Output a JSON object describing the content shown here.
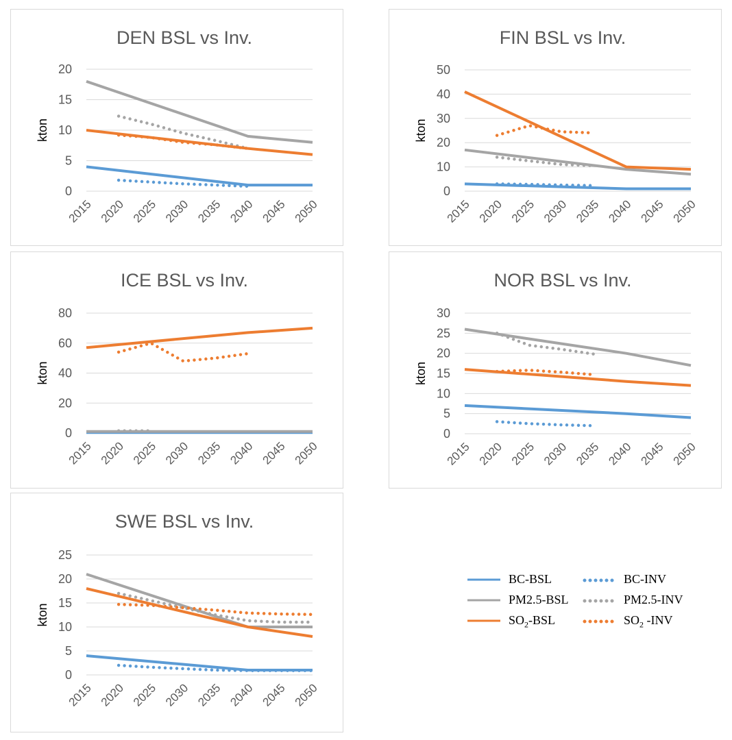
{
  "colors": {
    "BC": "#5b9bd5",
    "PM": "#a5a5a5",
    "SO2": "#ed7d31",
    "axis_text": "#595959",
    "title": "#595959",
    "grid": "#d9d9d9"
  },
  "legend": {
    "bc_bsl": "BC-BSL",
    "bc_inv": "BC-INV",
    "pm_bsl": "PM2.5-BSL",
    "pm_inv": "PM2.5-INV",
    "so2_bsl_pre": "SO",
    "so2_bsl_sub": "2",
    "so2_bsl_post": "-BSL",
    "so2_inv_pre": "SO",
    "so2_inv_sub": "2",
    "so2_inv_post": " -INV"
  },
  "chart_data": [
    {
      "type": "line",
      "title": "DEN BSL vs Inv.",
      "ylabel": "kton",
      "ylim": [
        0,
        20
      ],
      "yticks": [
        0,
        5,
        10,
        15,
        20
      ],
      "xticks": [
        "2015",
        "2020",
        "2025",
        "2030",
        "2035",
        "2040",
        "2045",
        "2050"
      ],
      "grid": true,
      "series": [
        {
          "name": "BC-BSL",
          "style": "solid",
          "color": "#5b9bd5",
          "x": [
            2015,
            2040,
            2050
          ],
          "y": [
            4,
            1,
            1
          ]
        },
        {
          "name": "BC-INV",
          "style": "dotted",
          "color": "#5b9bd5",
          "x": [
            2020,
            2025,
            2030,
            2035,
            2040
          ],
          "y": [
            1.8,
            1.5,
            1.2,
            1,
            0.8
          ]
        },
        {
          "name": "PM2.5-BSL",
          "style": "solid",
          "color": "#a5a5a5",
          "x": [
            2015,
            2040,
            2050
          ],
          "y": [
            18,
            9,
            8
          ]
        },
        {
          "name": "PM2.5-INV",
          "style": "dotted",
          "color": "#a5a5a5",
          "x": [
            2020,
            2025,
            2030,
            2035,
            2040
          ],
          "y": [
            12.3,
            11,
            9.5,
            8.3,
            7
          ]
        },
        {
          "name": "SO2-BSL",
          "style": "solid",
          "color": "#ed7d31",
          "x": [
            2015,
            2040,
            2050
          ],
          "y": [
            10,
            7,
            6
          ]
        },
        {
          "name": "SO2 -INV",
          "style": "dotted",
          "color": "#ed7d31",
          "x": [
            2020,
            2025,
            2030,
            2035,
            2040
          ],
          "y": [
            9.2,
            8.8,
            8,
            7.6,
            7
          ]
        }
      ]
    },
    {
      "type": "line",
      "title": "FIN BSL vs Inv.",
      "ylabel": "kton",
      "ylim": [
        0,
        50
      ],
      "yticks": [
        0,
        10,
        20,
        30,
        40,
        50
      ],
      "xticks": [
        "2015",
        "2020",
        "2025",
        "2030",
        "2035",
        "2040",
        "2045",
        "2050"
      ],
      "grid": true,
      "series": [
        {
          "name": "BC-BSL",
          "style": "solid",
          "color": "#5b9bd5",
          "x": [
            2015,
            2040,
            2050
          ],
          "y": [
            3,
            1,
            1
          ]
        },
        {
          "name": "BC-INV",
          "style": "dotted",
          "color": "#5b9bd5",
          "x": [
            2020,
            2025,
            2030,
            2035
          ],
          "y": [
            3,
            2.8,
            2.5,
            2.3
          ]
        },
        {
          "name": "PM2.5-BSL",
          "style": "solid",
          "color": "#a5a5a5",
          "x": [
            2015,
            2040,
            2050
          ],
          "y": [
            17,
            9,
            7
          ]
        },
        {
          "name": "PM2.5-INV",
          "style": "dotted",
          "color": "#a5a5a5",
          "x": [
            2020,
            2025,
            2030,
            2035
          ],
          "y": [
            14,
            12.5,
            11,
            10.5
          ]
        },
        {
          "name": "SO2-BSL",
          "style": "solid",
          "color": "#ed7d31",
          "x": [
            2015,
            2040,
            2050
          ],
          "y": [
            41,
            10,
            9
          ]
        },
        {
          "name": "SO2 -INV",
          "style": "dotted",
          "color": "#ed7d31",
          "x": [
            2020,
            2025,
            2030,
            2035
          ],
          "y": [
            23,
            27,
            24.5,
            24
          ]
        }
      ]
    },
    {
      "type": "line",
      "title": "ICE BSL vs Inv.",
      "ylabel": "kton",
      "ylim": [
        0,
        80
      ],
      "yticks": [
        0,
        20,
        40,
        60,
        80
      ],
      "xticks": [
        "2015",
        "2020",
        "2025",
        "2030",
        "2035",
        "2040",
        "2045",
        "2050"
      ],
      "grid": true,
      "series": [
        {
          "name": "BC-BSL",
          "style": "solid",
          "color": "#5b9bd5",
          "x": [
            2015,
            2050
          ],
          "y": [
            0.3,
            0.3
          ]
        },
        {
          "name": "PM2.5-BSL",
          "style": "solid",
          "color": "#a5a5a5",
          "x": [
            2015,
            2050
          ],
          "y": [
            1,
            1
          ]
        },
        {
          "name": "PM2.5-INV",
          "style": "dotted",
          "color": "#a5a5a5",
          "x": [
            2020,
            2025
          ],
          "y": [
            1.5,
            1.5
          ]
        },
        {
          "name": "SO2-BSL",
          "style": "solid",
          "color": "#ed7d31",
          "x": [
            2015,
            2040,
            2050
          ],
          "y": [
            57,
            67,
            70
          ]
        },
        {
          "name": "SO2 -INV",
          "style": "dotted",
          "color": "#ed7d31",
          "x": [
            2020,
            2025,
            2030,
            2035,
            2040
          ],
          "y": [
            54,
            60,
            48,
            50,
            53
          ]
        }
      ]
    },
    {
      "type": "line",
      "title": "NOR BSL vs Inv.",
      "ylabel": "kton",
      "ylim": [
        0,
        30
      ],
      "yticks": [
        0,
        5,
        10,
        15,
        20,
        25,
        30
      ],
      "xticks": [
        "2015",
        "2020",
        "2025",
        "2030",
        "2035",
        "2040",
        "2045",
        "2050"
      ],
      "grid": true,
      "series": [
        {
          "name": "BC-BSL",
          "style": "solid",
          "color": "#5b9bd5",
          "x": [
            2015,
            2040,
            2050
          ],
          "y": [
            7,
            5,
            4
          ]
        },
        {
          "name": "BC-INV",
          "style": "dotted",
          "color": "#5b9bd5",
          "x": [
            2020,
            2025,
            2030,
            2035
          ],
          "y": [
            3,
            2.5,
            2.2,
            2
          ]
        },
        {
          "name": "PM2.5-BSL",
          "style": "solid",
          "color": "#a5a5a5",
          "x": [
            2015,
            2040,
            2050
          ],
          "y": [
            26,
            20,
            17
          ]
        },
        {
          "name": "PM2.5-INV",
          "style": "dotted",
          "color": "#a5a5a5",
          "x": [
            2020,
            2025,
            2030,
            2035
          ],
          "y": [
            25,
            22,
            21,
            19.8
          ]
        },
        {
          "name": "SO2-BSL",
          "style": "solid",
          "color": "#ed7d31",
          "x": [
            2015,
            2040,
            2050
          ],
          "y": [
            16,
            13,
            12
          ]
        },
        {
          "name": "SO2 -INV",
          "style": "dotted",
          "color": "#ed7d31",
          "x": [
            2020,
            2025,
            2030,
            2035
          ],
          "y": [
            15.5,
            15.8,
            15.3,
            14.7
          ]
        }
      ]
    },
    {
      "type": "line",
      "title": "SWE BSL vs Inv.",
      "ylabel": "kton",
      "ylim": [
        0,
        25
      ],
      "yticks": [
        0,
        5,
        10,
        15,
        20,
        25
      ],
      "xticks": [
        "2015",
        "2020",
        "2025",
        "2030",
        "2035",
        "2040",
        "2045",
        "2050"
      ],
      "grid": true,
      "series": [
        {
          "name": "BC-BSL",
          "style": "solid",
          "color": "#5b9bd5",
          "x": [
            2015,
            2040,
            2050
          ],
          "y": [
            4,
            1,
            1
          ]
        },
        {
          "name": "BC-INV",
          "style": "dotted",
          "color": "#5b9bd5",
          "x": [
            2020,
            2025,
            2030,
            2035,
            2040,
            2045,
            2050
          ],
          "y": [
            2,
            1.6,
            1.3,
            1,
            0.9,
            0.9,
            0.9
          ]
        },
        {
          "name": "PM2.5-BSL",
          "style": "solid",
          "color": "#a5a5a5",
          "x": [
            2015,
            2040,
            2050
          ],
          "y": [
            21,
            10,
            10
          ]
        },
        {
          "name": "PM2.5-INV",
          "style": "dotted",
          "color": "#a5a5a5",
          "x": [
            2020,
            2025,
            2030,
            2035,
            2040,
            2045,
            2050
          ],
          "y": [
            17,
            15.5,
            14,
            12.5,
            11.3,
            11,
            11
          ]
        },
        {
          "name": "SO2-BSL",
          "style": "solid",
          "color": "#ed7d31",
          "x": [
            2015,
            2040,
            2050
          ],
          "y": [
            18,
            10,
            8
          ]
        },
        {
          "name": "SO2 -INV",
          "style": "dotted",
          "color": "#ed7d31",
          "x": [
            2020,
            2025,
            2030,
            2035,
            2040,
            2045,
            2050
          ],
          "y": [
            14.7,
            14.5,
            14,
            13.5,
            12.9,
            12.7,
            12.6
          ]
        }
      ]
    }
  ]
}
